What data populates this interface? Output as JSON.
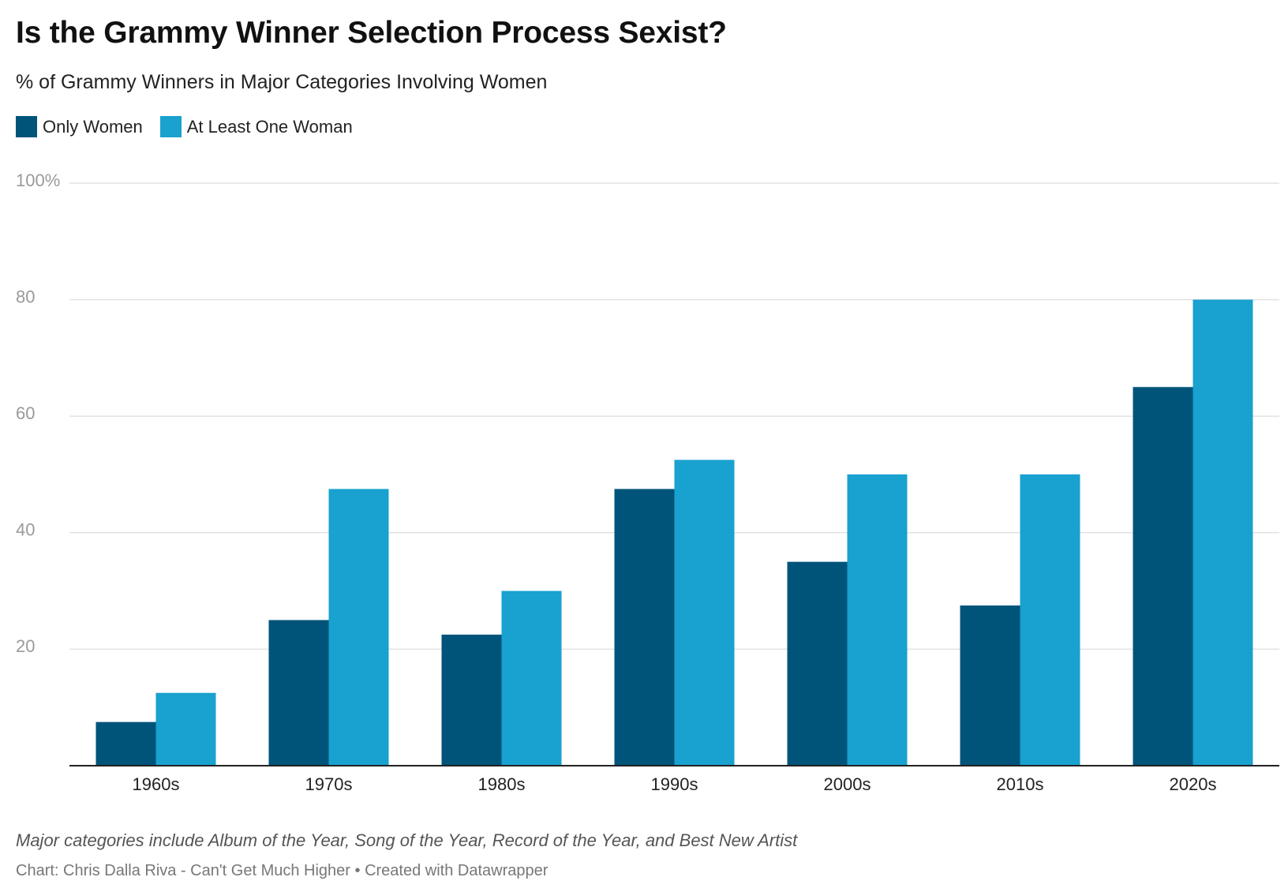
{
  "colors": {
    "only_women": "#00547a",
    "at_least_one_woman": "#19a1cf",
    "gridline": "#e2e2e2",
    "tick_label": "#9a9a9a",
    "category_label": "#222222",
    "axis_line": "#222222"
  },
  "title": "Is the Grammy Winner Selection Process Sexist?",
  "subtitle": "% of Grammy Winners in Major Categories Involving Women",
  "legend": [
    {
      "label": "Only Women",
      "color": "#00547a"
    },
    {
      "label": "At Least One Woman",
      "color": "#19a1cf"
    }
  ],
  "note": "Major categories include Album of the Year, Song of the Year, Record of the Year, and Best New Artist",
  "source": "Chart: Chris Dalla Riva - Can't Get Much Higher • Created with Datawrapper",
  "chart_data": {
    "type": "bar",
    "title": "Is the Grammy Winner Selection Process Sexist?",
    "subtitle": "% of Grammy Winners in Major Categories Involving Women",
    "xlabel": "",
    "ylabel": "",
    "ylim": [
      0,
      100
    ],
    "yticks": [
      {
        "value": 20,
        "label": "20"
      },
      {
        "value": 40,
        "label": "40"
      },
      {
        "value": 60,
        "label": "60"
      },
      {
        "value": 80,
        "label": "80"
      },
      {
        "value": 100,
        "label": "100%"
      }
    ],
    "grid": true,
    "legend_position": "top-left",
    "categories": [
      "1960s",
      "1970s",
      "1980s",
      "1990s",
      "2000s",
      "2010s",
      "2020s"
    ],
    "series": [
      {
        "name": "Only Women",
        "color": "#00547a",
        "values": [
          7.5,
          25,
          22.5,
          47.5,
          35,
          27.5,
          65
        ]
      },
      {
        "name": "At Least One Woman",
        "color": "#19a1cf",
        "values": [
          12.5,
          47.5,
          30,
          52.5,
          50,
          50,
          80
        ]
      }
    ]
  }
}
